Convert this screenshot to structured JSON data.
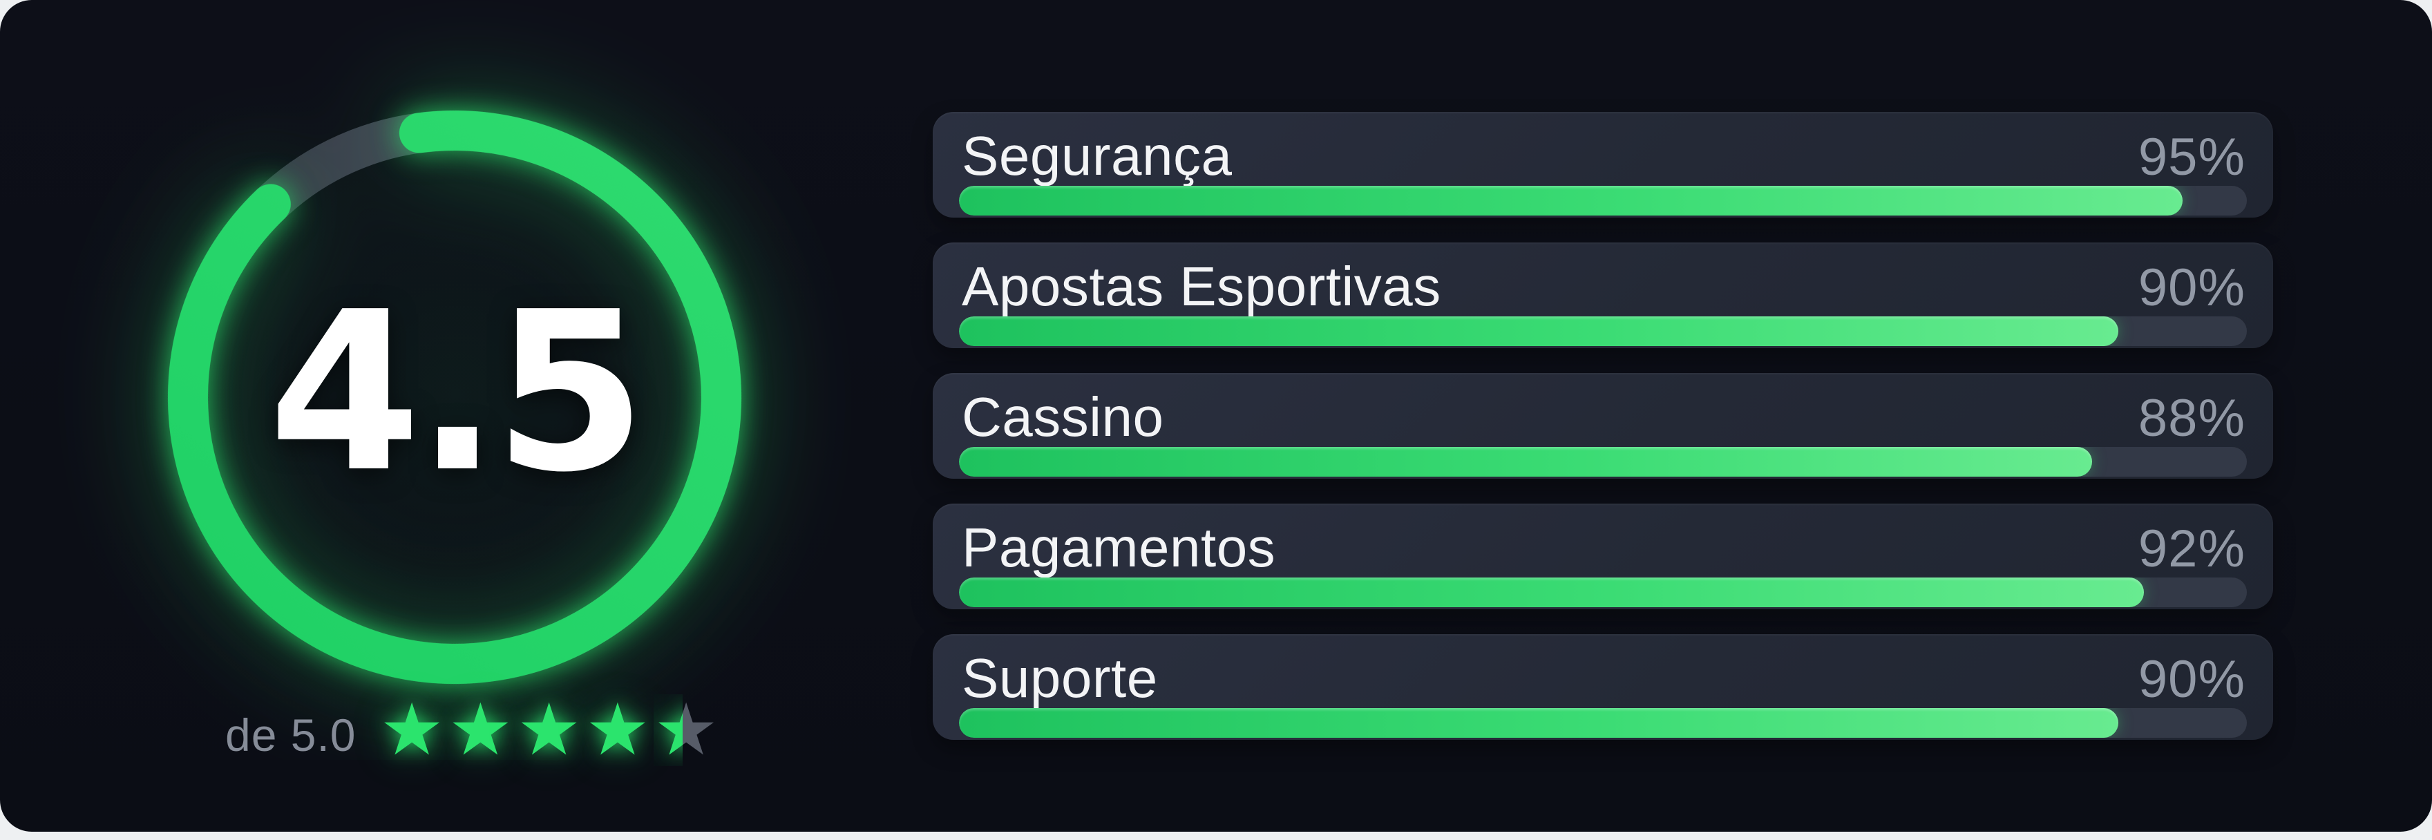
{
  "widget": {
    "gauge": {
      "score": "4.5",
      "out_of_label": "de 5.0",
      "rating_value": 4.5,
      "rating_max": 5,
      "ring_percent": 90
    },
    "stars": {
      "total": 5,
      "full": 4,
      "half": true,
      "half_fill_percent": 45
    },
    "categories": [
      {
        "label": "Segurança",
        "percent": 95,
        "percent_label": "95%"
      },
      {
        "label": "Apostas Esportivas",
        "percent": 90,
        "percent_label": "90%"
      },
      {
        "label": "Cassino",
        "percent": 88,
        "percent_label": "88%"
      },
      {
        "label": "Pagamentos",
        "percent": 92,
        "percent_label": "92%"
      },
      {
        "label": "Suporte",
        "percent": 90,
        "percent_label": "90%"
      }
    ],
    "colors": {
      "panel_background": "#0c0e16",
      "card_background": "#262b38",
      "track_background": "#333947",
      "accent_green": "#22d466",
      "bar_gradient_start": "#1ec25e",
      "bar_gradient_end": "#68eb90",
      "ring_gap_gray": "#4b5160",
      "score_text": "#ffffff",
      "label_text": "#f3f4f6",
      "percent_text": "#9299a6",
      "muted_text": "#868c98",
      "empty_star_gray": "#575c68"
    }
  },
  "chart_data": {
    "type": "bar",
    "orientation": "horizontal",
    "categories": [
      "Segurança",
      "Apostas Esportivas",
      "Cassino",
      "Pagamentos",
      "Suporte"
    ],
    "values": [
      95,
      90,
      88,
      92,
      90
    ],
    "value_labels": [
      "95%",
      "90%",
      "88%",
      "92%",
      "90%"
    ],
    "xlim": [
      0,
      100
    ],
    "title": "",
    "xlabel": "",
    "ylabel": "",
    "legend": false,
    "grid": false,
    "gauge": {
      "type": "donut-progress",
      "value": 4.5,
      "max": 5,
      "center_label": "4.5",
      "sub_label": "de 5.0",
      "percent_filled": 90,
      "stars_full": 4,
      "stars_half": 1
    }
  }
}
